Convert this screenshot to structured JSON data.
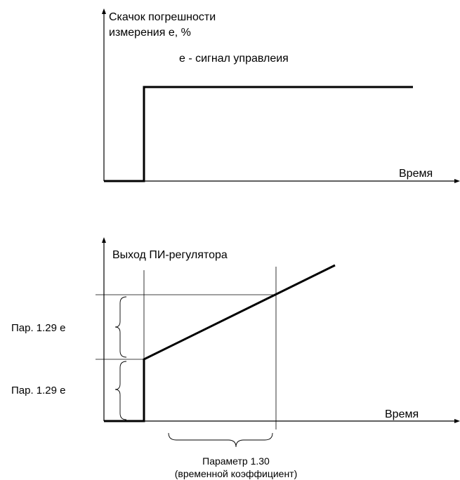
{
  "top_chart": {
    "ylabel_line1": "Скачок погрешности",
    "ylabel_line2": "измерения е, %",
    "signal_note": "е - сигнал управлеия",
    "xlabel": "Время"
  },
  "bottom_chart": {
    "ylabel": "Выход ПИ-регулятора",
    "step_label_upper": "Пар. 1.29 е",
    "step_label_lower": "Пар. 1.29 е",
    "xlabel": "Время",
    "param_label_line1": "Параметр 1.30",
    "param_label_line2": "(временной коэффициент)"
  },
  "colors": {
    "ink": "#000000",
    "background": "#ffffff"
  }
}
